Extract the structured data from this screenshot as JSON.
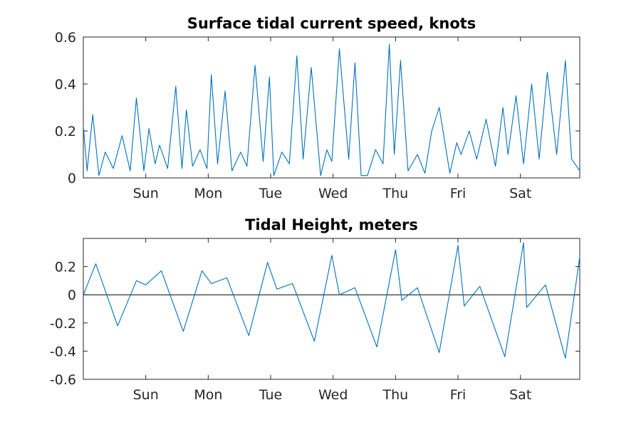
{
  "colors": {
    "series": "#0072BD",
    "axis": "#262626",
    "title": "#000000"
  },
  "chart_data": [
    {
      "type": "line",
      "title": "Surface tidal current speed, knots",
      "xlabel": "",
      "ylabel": "",
      "xlim": [
        0,
        7.95
      ],
      "ylim": [
        0,
        0.6
      ],
      "yticks": [
        0,
        0.2,
        0.4,
        0.6
      ],
      "ytick_labels": [
        "0",
        "0.2",
        "0.4",
        "0.6"
      ],
      "xticks": [
        1,
        2,
        3,
        4,
        5,
        6,
        7
      ],
      "xtick_labels": [
        "Sun",
        "Mon",
        "Tue",
        "Wed",
        "Thu",
        "Fri",
        "Sat"
      ],
      "zero_line": false,
      "series": [
        {
          "name": "Current speed",
          "x": [
            0.0,
            0.06,
            0.15,
            0.25,
            0.35,
            0.48,
            0.62,
            0.75,
            0.85,
            0.97,
            1.05,
            1.15,
            1.22,
            1.35,
            1.48,
            1.58,
            1.65,
            1.75,
            1.87,
            1.98,
            2.05,
            2.15,
            2.27,
            2.38,
            2.52,
            2.62,
            2.75,
            2.88,
            2.98,
            3.05,
            3.18,
            3.3,
            3.42,
            3.52,
            3.65,
            3.8,
            3.9,
            3.98,
            4.1,
            4.25,
            4.35,
            4.45,
            4.55,
            4.68,
            4.8,
            4.9,
            4.98,
            5.08,
            5.2,
            5.35,
            5.47,
            5.58,
            5.7,
            5.87,
            5.98,
            6.05,
            6.18,
            6.3,
            6.45,
            6.6,
            6.72,
            6.8,
            6.93,
            7.05,
            7.18,
            7.3,
            7.43,
            7.58,
            7.72,
            7.82,
            7.95
          ],
          "values": [
            0.22,
            0.03,
            0.27,
            0.01,
            0.11,
            0.04,
            0.18,
            0.03,
            0.34,
            0.03,
            0.21,
            0.06,
            0.14,
            0.04,
            0.39,
            0.04,
            0.29,
            0.05,
            0.12,
            0.04,
            0.44,
            0.06,
            0.37,
            0.03,
            0.11,
            0.05,
            0.48,
            0.07,
            0.43,
            0.01,
            0.11,
            0.06,
            0.52,
            0.08,
            0.47,
            0.01,
            0.12,
            0.07,
            0.55,
            0.08,
            0.49,
            0.01,
            0.01,
            0.12,
            0.06,
            0.57,
            0.1,
            0.5,
            0.03,
            0.1,
            0.02,
            0.2,
            0.3,
            0.02,
            0.15,
            0.1,
            0.2,
            0.08,
            0.25,
            0.05,
            0.3,
            0.1,
            0.35,
            0.06,
            0.4,
            0.08,
            0.45,
            0.1,
            0.5,
            0.08,
            0.03
          ]
        }
      ]
    },
    {
      "type": "line",
      "title": "Tidal Height, meters",
      "xlabel": "",
      "ylabel": "",
      "xlim": [
        0,
        7.95
      ],
      "ylim": [
        -0.6,
        0.4
      ],
      "yticks": [
        -0.6,
        -0.4,
        -0.2,
        0,
        0.2
      ],
      "ytick_labels": [
        "-0.6",
        "-0.4",
        "-0.2",
        "0",
        "0.2"
      ],
      "xticks": [
        1,
        2,
        3,
        4,
        5,
        6,
        7
      ],
      "xtick_labels": [
        "Sun",
        "Mon",
        "Tue",
        "Wed",
        "Thu",
        "Fri",
        "Sat"
      ],
      "zero_line": true,
      "series": [
        {
          "name": "Tidal height",
          "x": [
            0.0,
            0.2,
            0.55,
            0.85,
            1.0,
            1.25,
            1.6,
            1.9,
            2.05,
            2.3,
            2.65,
            2.95,
            3.1,
            3.35,
            3.7,
            3.98,
            4.1,
            4.35,
            4.7,
            5.0,
            5.1,
            5.35,
            5.7,
            6.0,
            6.1,
            6.35,
            6.75,
            7.05,
            7.1,
            7.4,
            7.72,
            7.95
          ],
          "values": [
            0.0,
            0.22,
            -0.22,
            0.1,
            0.07,
            0.17,
            -0.26,
            0.17,
            0.08,
            0.12,
            -0.29,
            0.23,
            0.04,
            0.08,
            -0.33,
            0.28,
            0.0,
            0.05,
            -0.37,
            0.32,
            -0.04,
            0.05,
            -0.41,
            0.35,
            -0.08,
            0.06,
            -0.44,
            0.37,
            -0.09,
            0.07,
            -0.45,
            0.27
          ]
        }
      ]
    }
  ]
}
